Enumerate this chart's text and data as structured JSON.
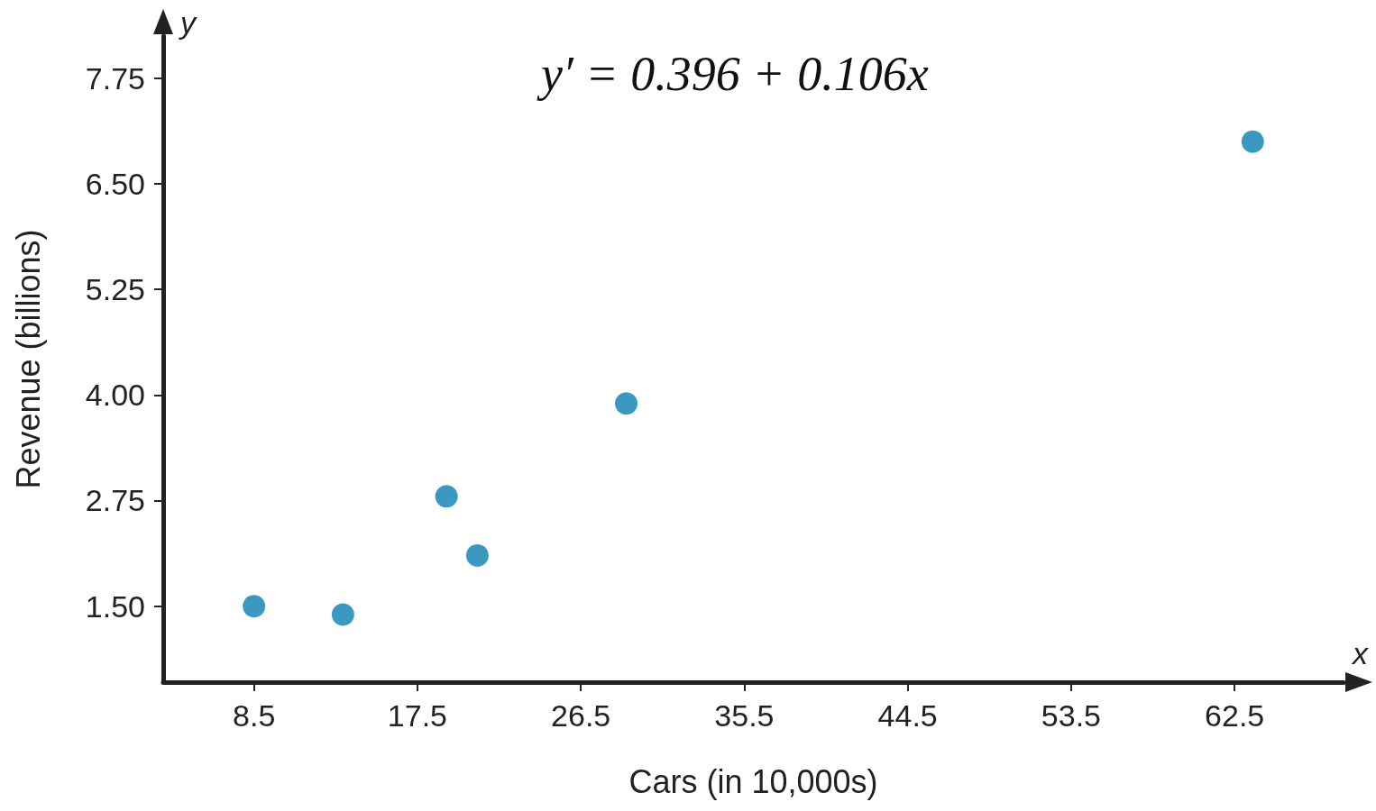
{
  "chart_data": {
    "type": "scatter",
    "xlabel": "Cars (in 10,000s)",
    "ylabel": "Revenue (billions)",
    "annotations": [
      "y′ = 0.396 + 0.106x",
      "y",
      "x"
    ],
    "x": [
      8.5,
      13.4,
      19.1,
      20.8,
      29.0,
      63.5
    ],
    "series": [
      {
        "color": "#0a80b2",
        "values": [
          1.5,
          1.4,
          2.8,
          2.1,
          3.9,
          7.0
        ]
      }
    ],
    "xlim": [
      3.5,
      68.5
    ],
    "xticks": [
      8.5,
      17.5,
      26.5,
      35.5,
      44.5,
      53.5,
      62.5
    ],
    "ylim": [
      0.6,
      8.25
    ],
    "yticks": [
      {
        "value": 1.5,
        "label": "1.50"
      },
      2.75,
      {
        "value": 4,
        "label": "4.00"
      },
      5.25,
      {
        "value": 6.5,
        "label": "6.50"
      },
      7.75
    ],
    "grid": false,
    "marker": "circle"
  }
}
